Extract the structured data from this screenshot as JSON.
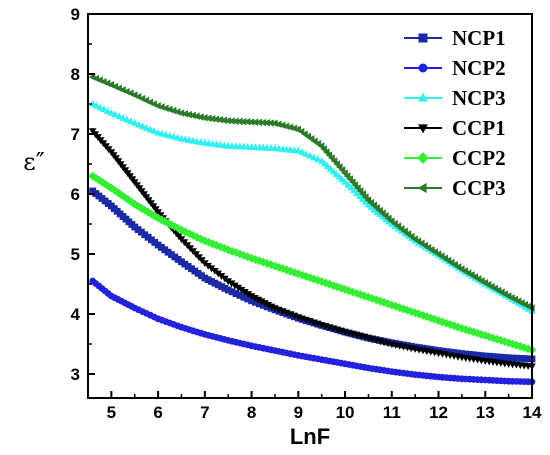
{
  "chart_data": {
    "type": "scatter",
    "title": "",
    "xlabel": "LnF",
    "ylabel": "ε″",
    "xlim": [
      4.5,
      14
    ],
    "ylim": [
      2.6,
      9
    ],
    "xticks": [
      5,
      6,
      7,
      8,
      9,
      10,
      11,
      12,
      13,
      14
    ],
    "yticks": [
      3,
      4,
      5,
      6,
      7,
      8,
      9
    ],
    "grid": false,
    "legend_position": "top-right",
    "series": [
      {
        "name": "NCP1",
        "marker": "square",
        "color": "#1a2aa6",
        "x": [
          4.6,
          5,
          5.5,
          6,
          6.5,
          7,
          7.5,
          8,
          8.5,
          9,
          9.5,
          10,
          10.5,
          11,
          11.5,
          12,
          12.5,
          13,
          13.5,
          14
        ],
        "y": [
          6.05,
          5.8,
          5.45,
          5.15,
          4.87,
          4.6,
          4.4,
          4.22,
          4.07,
          3.93,
          3.81,
          3.7,
          3.6,
          3.52,
          3.45,
          3.39,
          3.34,
          3.3,
          3.27,
          3.25
        ]
      },
      {
        "name": "NCP2",
        "marker": "circle",
        "color": "#2222dd",
        "x": [
          4.6,
          5,
          5.5,
          6,
          6.5,
          7,
          7.5,
          8,
          8.5,
          9,
          9.5,
          10,
          10.5,
          11,
          11.5,
          12,
          12.5,
          13,
          13.5,
          14
        ],
        "y": [
          4.55,
          4.3,
          4.1,
          3.92,
          3.78,
          3.66,
          3.56,
          3.47,
          3.39,
          3.31,
          3.24,
          3.17,
          3.1,
          3.04,
          2.99,
          2.95,
          2.92,
          2.9,
          2.88,
          2.87
        ]
      },
      {
        "name": "NCP3",
        "marker": "triangle-up",
        "color": "#33eeee",
        "x": [
          4.6,
          5,
          5.5,
          6,
          6.5,
          7,
          7.5,
          8,
          8.5,
          9,
          9.5,
          10,
          10.5,
          11,
          11.5,
          12,
          12.5,
          13,
          13.5,
          14
        ],
        "y": [
          7.5,
          7.35,
          7.18,
          7.02,
          6.92,
          6.85,
          6.8,
          6.78,
          6.76,
          6.72,
          6.55,
          6.2,
          5.82,
          5.5,
          5.22,
          4.98,
          4.73,
          4.5,
          4.28,
          4.05
        ]
      },
      {
        "name": "CCP1",
        "marker": "triangle-down",
        "color": "#000000",
        "x": [
          4.6,
          5,
          5.5,
          6,
          6.5,
          7,
          7.5,
          8,
          8.5,
          9,
          9.5,
          10,
          10.5,
          11,
          11.5,
          12,
          12.5,
          13,
          13.5,
          14
        ],
        "y": [
          7.05,
          6.7,
          6.2,
          5.7,
          5.25,
          4.85,
          4.55,
          4.3,
          4.1,
          3.95,
          3.82,
          3.7,
          3.6,
          3.5,
          3.42,
          3.35,
          3.28,
          3.22,
          3.17,
          3.13
        ]
      },
      {
        "name": "CCP2",
        "marker": "diamond",
        "color": "#33ee33",
        "x": [
          4.6,
          5,
          5.5,
          6,
          6.5,
          7,
          7.5,
          8,
          8.5,
          9,
          9.5,
          10,
          10.5,
          11,
          11.5,
          12,
          12.5,
          13,
          13.5,
          14
        ],
        "y": [
          6.3,
          6.1,
          5.83,
          5.6,
          5.4,
          5.22,
          5.07,
          4.93,
          4.8,
          4.67,
          4.54,
          4.41,
          4.28,
          4.15,
          4.02,
          3.89,
          3.76,
          3.64,
          3.52,
          3.4
        ]
      },
      {
        "name": "CCP3",
        "marker": "triangle-left",
        "color": "#2a7a2a",
        "x": [
          4.6,
          5,
          5.5,
          6,
          6.5,
          7,
          7.5,
          8,
          8.5,
          9,
          9.5,
          10,
          10.5,
          11,
          11.5,
          12,
          12.5,
          13,
          13.5,
          14
        ],
        "y": [
          7.95,
          7.82,
          7.65,
          7.47,
          7.35,
          7.27,
          7.22,
          7.2,
          7.18,
          7.08,
          6.8,
          6.35,
          5.9,
          5.55,
          5.25,
          5.0,
          4.75,
          4.52,
          4.3,
          4.1
        ]
      }
    ]
  }
}
